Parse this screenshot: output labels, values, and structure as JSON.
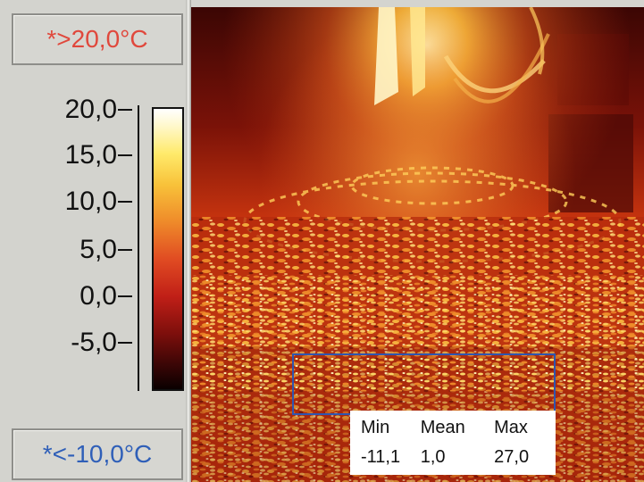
{
  "limits": {
    "high_label": "*>20,0°C",
    "low_label": "*<-10,0°C",
    "high_color": "#e0483c",
    "low_color": "#2f5fb8"
  },
  "scale": {
    "ticks": [
      "20,0",
      "15,0",
      "10,0",
      "5,0",
      "0,0",
      "-5,0"
    ],
    "palette": "white-yellow-orange-red-black"
  },
  "roi_stats": {
    "headers": [
      "Min",
      "Mean",
      "Max"
    ],
    "values": [
      "-11,1",
      "1,0",
      "27,0"
    ],
    "box_color": "#2e55b0"
  }
}
